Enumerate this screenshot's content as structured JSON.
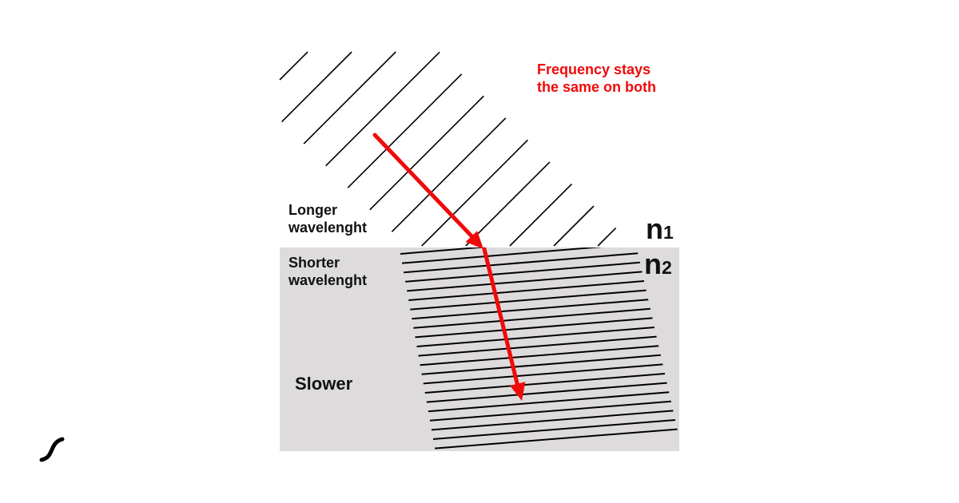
{
  "diagram": {
    "note": [
      "Frequency stays",
      "the same on both"
    ],
    "upper_medium_label": [
      "Longer",
      "wavelenght"
    ],
    "lower_medium_label": [
      "Shorter",
      "wavelenght"
    ],
    "lower_medium_speed": "Slower",
    "media": [
      {
        "symbol": "n",
        "index": "1"
      },
      {
        "symbol": "n",
        "index": "2"
      }
    ],
    "colors": {
      "ray": "#f00a0a",
      "lower_medium": "#dedbdc",
      "wavefront": "#000000"
    },
    "logo_icon": "integral-squiggle-icon"
  }
}
